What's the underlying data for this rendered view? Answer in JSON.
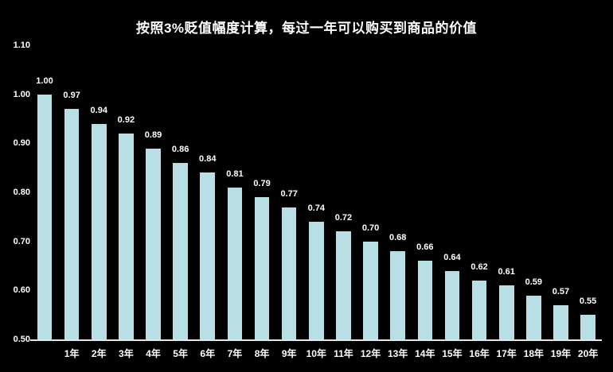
{
  "chart_data": {
    "type": "bar",
    "title": "按照3%贬值幅度计算，每过一年可以购买到商品的价值",
    "categories": [
      "",
      "1年",
      "2年",
      "3年",
      "4年",
      "5年",
      "6年",
      "7年",
      "8年",
      "9年",
      "10年",
      "11年",
      "12年",
      "13年",
      "14年",
      "15年",
      "16年",
      "17年",
      "18年",
      "19年",
      "20年"
    ],
    "values": [
      1.0,
      0.97,
      0.94,
      0.92,
      0.89,
      0.86,
      0.84,
      0.81,
      0.79,
      0.77,
      0.74,
      0.72,
      0.7,
      0.68,
      0.66,
      0.64,
      0.62,
      0.61,
      0.59,
      0.57,
      0.55
    ],
    "value_labels": [
      "1.00",
      "0.97",
      "0.94",
      "0.92",
      "0.89",
      "0.86",
      "0.84",
      "0.81",
      "0.79",
      "0.77",
      "0.74",
      "0.72",
      "0.70",
      "0.68",
      "0.66",
      "0.64",
      "0.62",
      "0.61",
      "0.59",
      "0.57",
      "0.55"
    ],
    "ytick_labels": [
      "1.10",
      "1.00",
      "0.90",
      "0.80",
      "0.70",
      "0.60",
      "0.50"
    ],
    "ylim": [
      0.5,
      1.1
    ],
    "grid": false,
    "legend": false,
    "colors": {
      "background": "#000000",
      "bar": "#B8DFE3",
      "text": "#FFFFFF",
      "axis_line": "#E6E6E6"
    }
  }
}
